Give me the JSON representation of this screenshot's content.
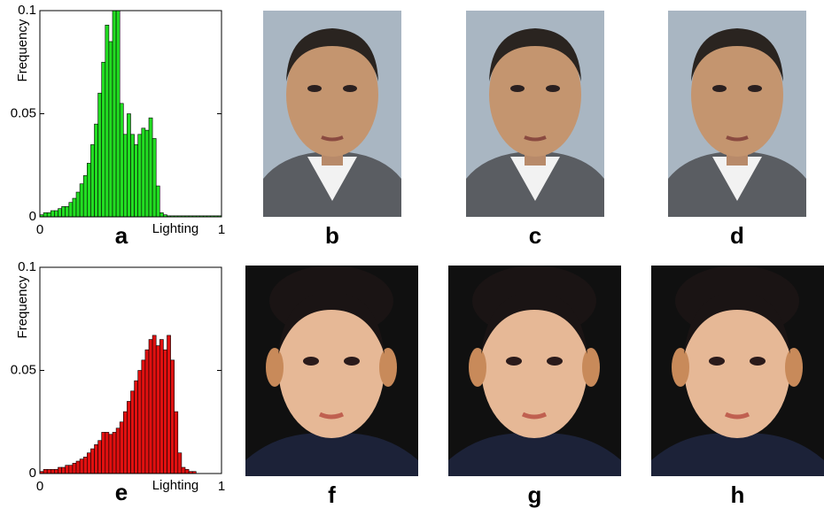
{
  "chart_data": [
    {
      "type": "histogram",
      "panel_label": "a",
      "xlabel": "Lighting",
      "ylabel": "Frequency",
      "color": "#22dd22",
      "bins": [
        0,
        0.02,
        0.04,
        0.06,
        0.08,
        0.1,
        0.12,
        0.14,
        0.16,
        0.18,
        0.2,
        0.22,
        0.24,
        0.26,
        0.28,
        0.3,
        0.32,
        0.34,
        0.36,
        0.38,
        0.4,
        0.42,
        0.44,
        0.46,
        0.48,
        0.5,
        0.52,
        0.54,
        0.56,
        0.58,
        0.6,
        0.62,
        0.64,
        0.66,
        0.68,
        0.7,
        0.72,
        0.74,
        0.76,
        0.78,
        0.8,
        0.82,
        0.84,
        0.86,
        0.88,
        0.9,
        0.92,
        0.94,
        0.96,
        0.98,
        1
      ],
      "values": [
        0.001,
        0.002,
        0.002,
        0.003,
        0.003,
        0.004,
        0.005,
        0.005,
        0.007,
        0.009,
        0.012,
        0.016,
        0.02,
        0.026,
        0.035,
        0.045,
        0.06,
        0.075,
        0.093,
        0.085,
        0.1,
        0.1,
        0.055,
        0.04,
        0.05,
        0.04,
        0.035,
        0.04,
        0.043,
        0.042,
        0.048,
        0.038,
        0.015,
        0.002,
        0.001,
        0.0005,
        0.0005,
        0.0005,
        0.0005,
        0.0005,
        0.0005,
        0.0005,
        0.0005,
        0.0005,
        0.0005,
        0.0005,
        0.0005,
        0.0005,
        0.0005,
        0.0005
      ],
      "xlim": [
        0,
        1
      ],
      "ylim": [
        0,
        0.1
      ],
      "xticks": [
        0,
        1
      ],
      "yticks": [
        0,
        0.05,
        0.1
      ]
    },
    {
      "type": "histogram",
      "panel_label": "e",
      "xlabel": "Lighting",
      "ylabel": "Frequency",
      "color": "#e01010",
      "bins": [
        0,
        0.02,
        0.04,
        0.06,
        0.08,
        0.1,
        0.12,
        0.14,
        0.16,
        0.18,
        0.2,
        0.22,
        0.24,
        0.26,
        0.28,
        0.3,
        0.32,
        0.34,
        0.36,
        0.38,
        0.4,
        0.42,
        0.44,
        0.46,
        0.48,
        0.5,
        0.52,
        0.54,
        0.56,
        0.58,
        0.6,
        0.62,
        0.64,
        0.66,
        0.68,
        0.7,
        0.72,
        0.74,
        0.76,
        0.78,
        0.8,
        0.82,
        0.84,
        0.86,
        0.88,
        0.9,
        0.92,
        0.94,
        0.96,
        0.98,
        1
      ],
      "values": [
        0.001,
        0.002,
        0.002,
        0.002,
        0.002,
        0.003,
        0.003,
        0.004,
        0.004,
        0.005,
        0.006,
        0.007,
        0.008,
        0.01,
        0.012,
        0.014,
        0.016,
        0.02,
        0.02,
        0.019,
        0.02,
        0.022,
        0.025,
        0.03,
        0.035,
        0.04,
        0.045,
        0.05,
        0.055,
        0.06,
        0.065,
        0.067,
        0.062,
        0.065,
        0.06,
        0.067,
        0.055,
        0.03,
        0.01,
        0.003,
        0.002,
        0.001,
        0.001,
        0,
        0,
        0,
        0,
        0,
        0,
        0
      ],
      "xlim": [
        0,
        1
      ],
      "ylim": [
        0,
        0.1
      ],
      "xticks": [
        0,
        1
      ],
      "yticks": [
        0,
        0.05,
        0.1
      ]
    }
  ],
  "photos": [
    {
      "label": "b"
    },
    {
      "label": "c"
    },
    {
      "label": "d"
    },
    {
      "label": "f"
    },
    {
      "label": "g"
    },
    {
      "label": "h"
    }
  ]
}
